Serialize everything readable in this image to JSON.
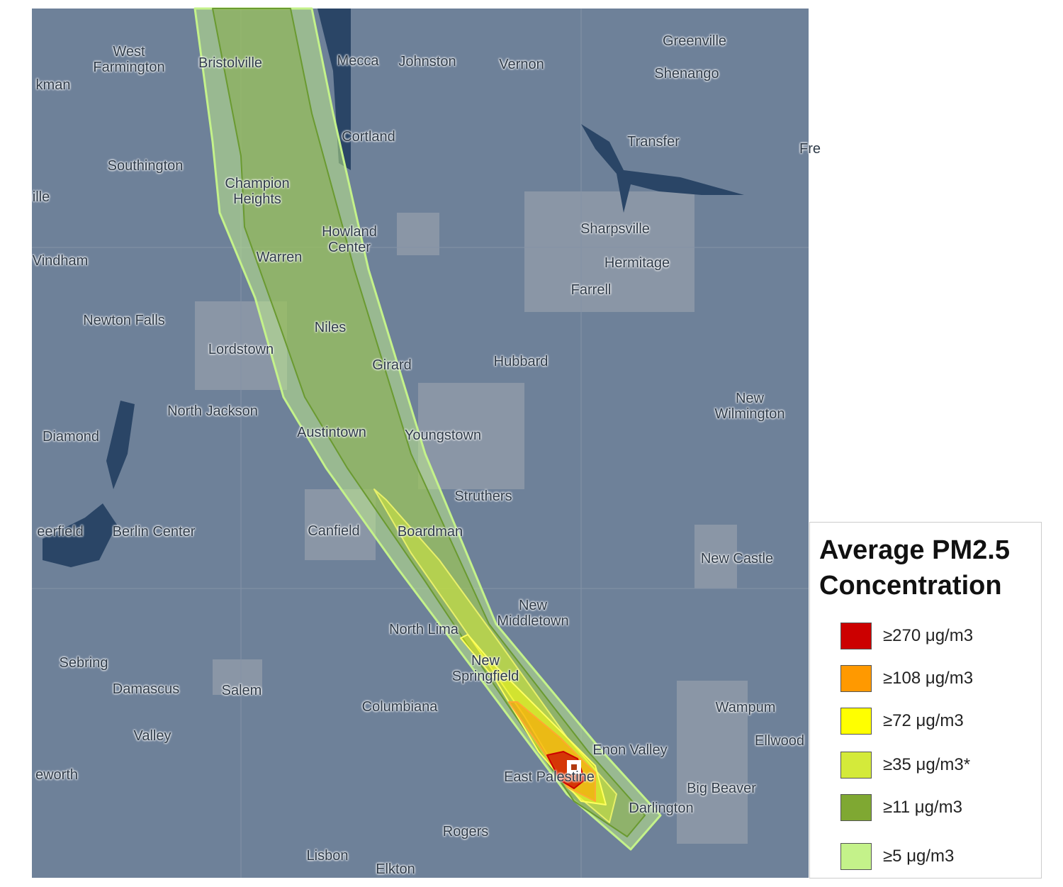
{
  "map": {
    "places": [
      "kman",
      "West Farmington",
      "Bristolville",
      "Mecca",
      "Johnston",
      "Vernon",
      "Greenville",
      "Shenango",
      "Cortland",
      "Transfer",
      "Fre",
      "Southington",
      "ille",
      "Champion Heights",
      "Howland Center",
      "Sharpsville",
      "Vindham",
      "Warren",
      "Hermitage",
      "Farrell",
      "Newton Falls",
      "Niles",
      "Lordstown",
      "Girard",
      "Hubbard",
      "New Wilmington",
      "North Jackson",
      "Diamond",
      "Austintown",
      "Youngstown",
      "Struthers",
      "eerfield",
      "Berlin Center",
      "Canfield",
      "Boardman",
      "New Castle",
      "New Middletown",
      "North Lima",
      "Sebring",
      "New Springfield",
      "Damascus",
      "Salem",
      "Columbiana",
      "Wampum",
      "Ellwood",
      "Valley",
      "Enon Valley",
      "eworth",
      "East Palestine",
      "Big Beaver",
      "Darlington",
      "Rogers",
      "Lisbon",
      "Elkton"
    ]
  },
  "legend": {
    "title": "Average PM2.5 Concentration",
    "items": [
      {
        "label": "≥270 μg/m3",
        "color": "#cc0000"
      },
      {
        "label": "≥108 μg/m3",
        "color": "#ff9900"
      },
      {
        "label": "≥72 μg/m3",
        "color": "#ffff00"
      },
      {
        "label": "≥35 μg/m3*",
        "color": "#d4ea3a"
      },
      {
        "label": "≥11 μg/m3",
        "color": "#7fa832"
      },
      {
        "label": "≥5 μg/m3",
        "color": "#c4f28a"
      }
    ]
  }
}
